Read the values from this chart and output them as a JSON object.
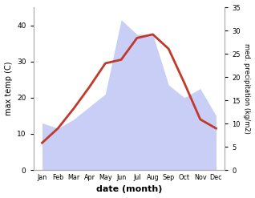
{
  "months": [
    "Jan",
    "Feb",
    "Mar",
    "Apr",
    "May",
    "Jun",
    "Jul",
    "Aug",
    "Sep",
    "Oct",
    "Nov",
    "Dec"
  ],
  "temp": [
    7.5,
    11.5,
    17.0,
    23.0,
    29.5,
    30.5,
    36.5,
    37.5,
    33.5,
    24.0,
    14.0,
    11.5
  ],
  "precip_left_scale": [
    13.0,
    11.5,
    14.0,
    17.5,
    21.0,
    41.5,
    37.5,
    37.5,
    23.5,
    20.0,
    22.5,
    15.0
  ],
  "temp_color": "#c0392b",
  "precip_fill_color": "#c8cef5",
  "xlabel": "date (month)",
  "ylabel_left": "max temp (C)",
  "ylabel_right": "med. precipitation (kg/m2)",
  "ylim_left": [
    0,
    45
  ],
  "ylim_right": [
    0,
    35
  ],
  "yticks_left": [
    0,
    10,
    20,
    30,
    40
  ],
  "yticks_right": [
    0,
    5,
    10,
    15,
    20,
    25,
    30,
    35
  ],
  "bg_color": "#ffffff",
  "line_width": 2.0
}
